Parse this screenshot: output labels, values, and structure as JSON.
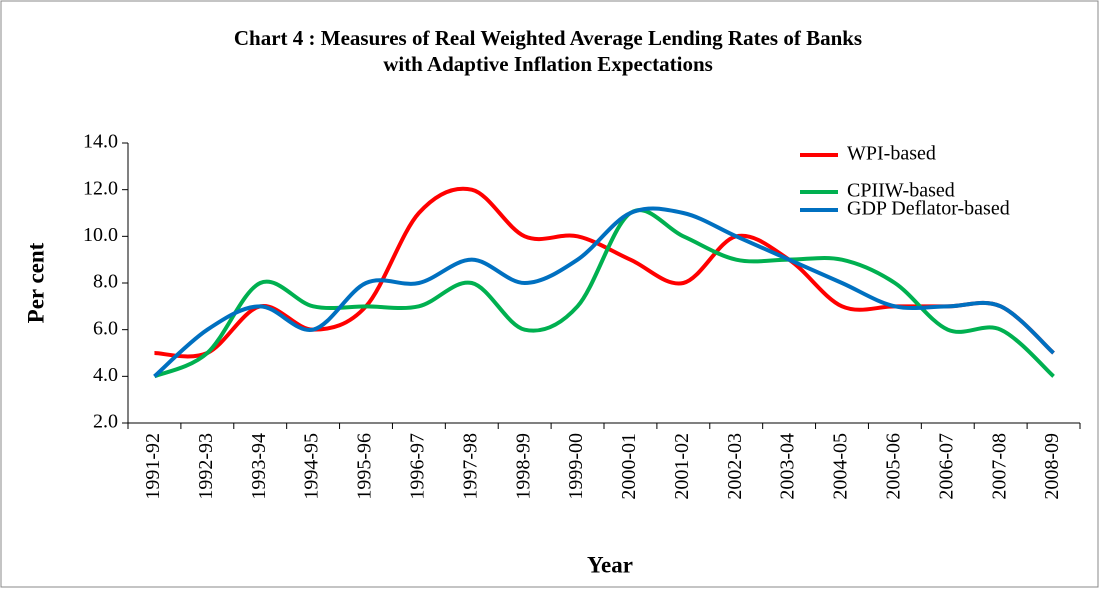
{
  "chart_data": {
    "type": "line",
    "title": "Chart 4 : Measures of Real  Weighted Average Lending Rates of Banks",
    "subtitle": "with Adaptive Inflation Expectations",
    "x_label": "Year",
    "y_label": "Per cent",
    "categories": [
      "1991-92",
      "1992-93",
      "1993-94",
      "1994-95",
      "1995-96",
      "1996-97",
      "1997-98",
      "1998-99",
      "1999-00",
      "2000-01",
      "2001-02",
      "2002-03",
      "2003-04",
      "2004-05",
      "2005-06",
      "2006-07",
      "2007-08",
      "2008-09"
    ],
    "series": [
      {
        "name": "WPI-based",
        "color": "#ff0000",
        "values": [
          5.0,
          5.0,
          7.0,
          6.0,
          7.0,
          11.0,
          12.0,
          10.0,
          10.0,
          9.0,
          8.0,
          10.0,
          9.0,
          7.0,
          7.0,
          7.0,
          7.0,
          5.0
        ]
      },
      {
        "name": "CPIIW-based",
        "color": "#00b050",
        "values": [
          4.0,
          5.0,
          8.0,
          7.0,
          7.0,
          7.0,
          8.0,
          6.0,
          7.0,
          11.0,
          10.0,
          9.0,
          9.0,
          9.0,
          8.0,
          6.0,
          6.0,
          4.0
        ]
      },
      {
        "name": "GDP Deflator-based",
        "color": "#0070c0",
        "values": [
          4.0,
          6.0,
          7.0,
          6.0,
          8.0,
          8.0,
          9.0,
          8.0,
          9.0,
          11.0,
          11.0,
          10.0,
          9.0,
          8.0,
          7.0,
          7.0,
          7.0,
          5.0
        ]
      }
    ],
    "ylim": [
      2,
      14
    ],
    "yticks": [
      {
        "value": 2,
        "label": "2.0"
      },
      {
        "value": 4,
        "label": "4.0"
      },
      {
        "value": 6,
        "label": "6.0"
      },
      {
        "value": 8,
        "label": "8.0"
      },
      {
        "value": 10,
        "label": "10.0"
      },
      {
        "value": 12,
        "label": "12.0"
      },
      {
        "value": 14,
        "label": "14.0"
      }
    ],
    "legend": "top-right"
  }
}
